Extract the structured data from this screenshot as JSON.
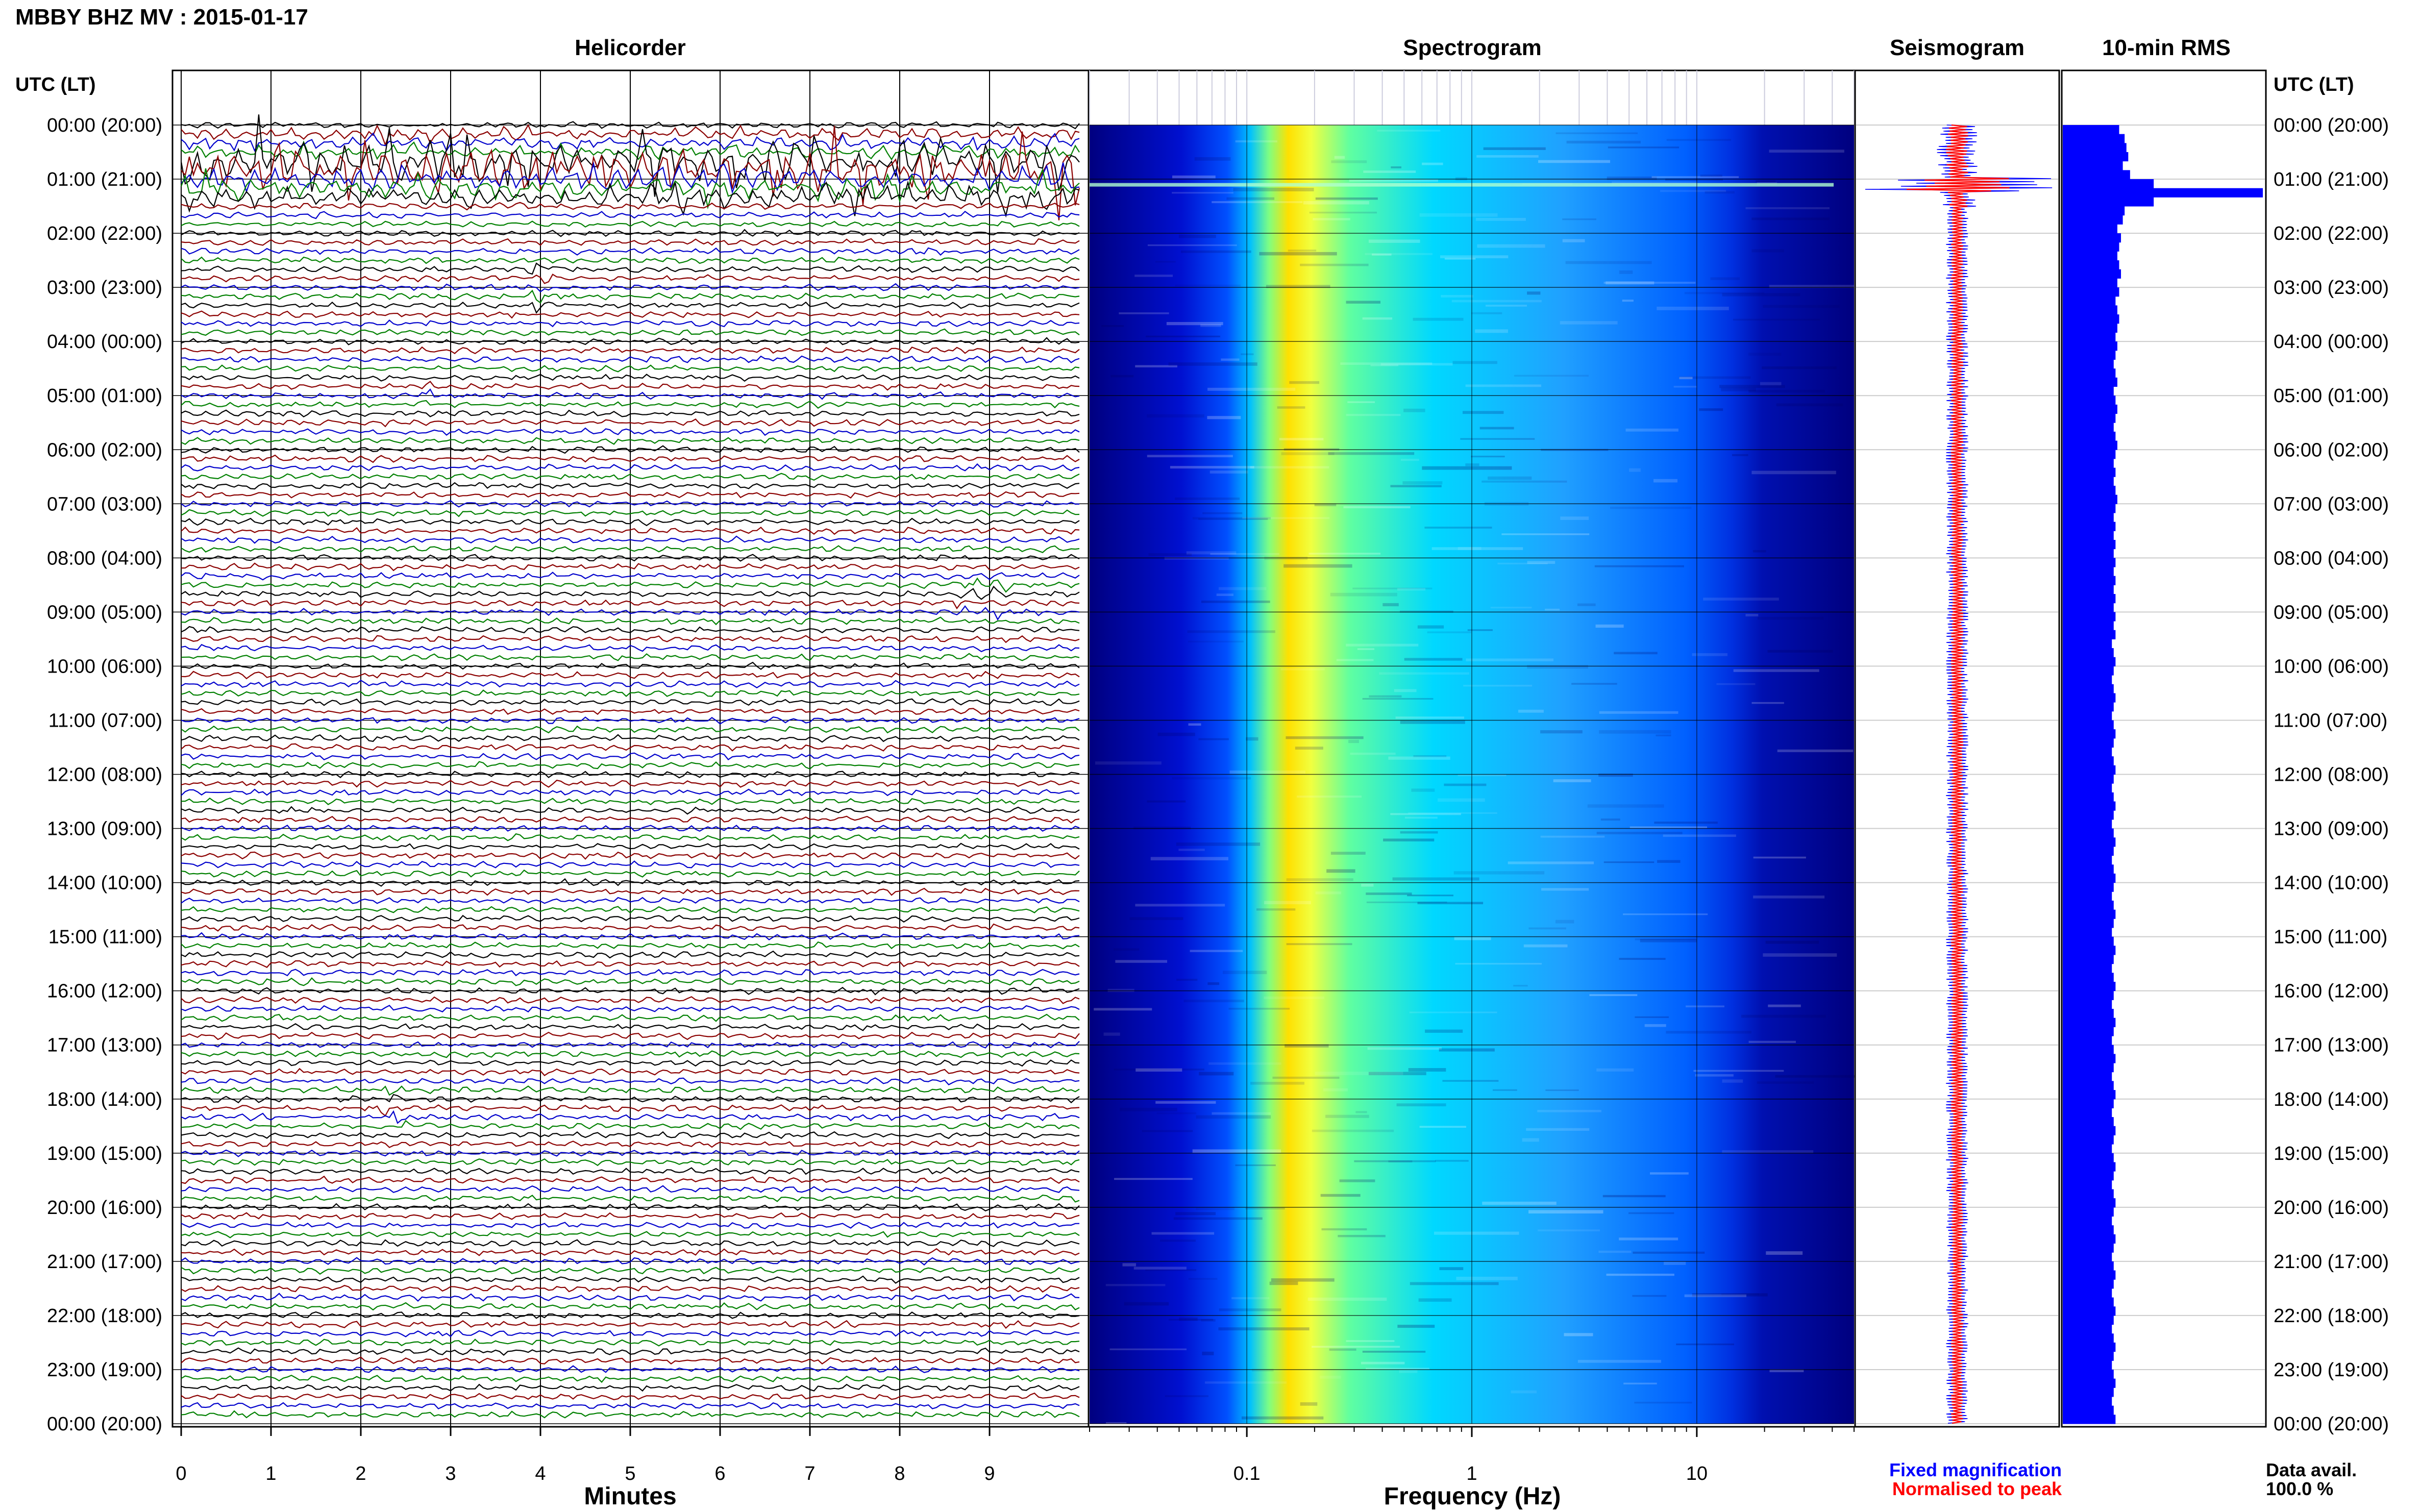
{
  "header": {
    "station_title": "MBBY BHZ MV : 2015-01-17",
    "utc_label_left": "UTC (LT)",
    "utc_label_right": "UTC (LT)"
  },
  "panels": {
    "helicorder_title": "Helicorder",
    "spectrogram_title": "Spectrogram",
    "seismogram_title": "Seismogram",
    "rms_title": "10-min RMS"
  },
  "time_labels": [
    "00:00 (20:00)",
    "01:00 (21:00)",
    "02:00 (22:00)",
    "03:00 (23:00)",
    "04:00 (00:00)",
    "05:00 (01:00)",
    "06:00 (02:00)",
    "07:00 (03:00)",
    "08:00 (04:00)",
    "09:00 (05:00)",
    "10:00 (06:00)",
    "11:00 (07:00)",
    "12:00 (08:00)",
    "13:00 (09:00)",
    "14:00 (10:00)",
    "15:00 (11:00)",
    "16:00 (12:00)",
    "17:00 (13:00)",
    "18:00 (14:00)",
    "19:00 (15:00)",
    "20:00 (16:00)",
    "21:00 (17:00)",
    "22:00 (18:00)",
    "23:00 (19:00)",
    "00:00 (20:00)"
  ],
  "legend": {
    "fixed_label": "Fixed magnification",
    "normalised_label": "Normalised to peak",
    "fixed_color": "#0000ff",
    "normalised_color": "#ff0000",
    "avail_label": "Data avail.",
    "avail_value": "100.0 %"
  },
  "chart_data": [
    {
      "type": "line",
      "panel": "helicorder",
      "xlabel": "Minutes",
      "x_ticks": [
        "0",
        "1",
        "2",
        "3",
        "4",
        "5",
        "6",
        "7",
        "8",
        "9"
      ],
      "xlim": [
        0,
        10
      ],
      "hours": 24,
      "traces_per_hour": 6,
      "trace_colors": [
        "#000000",
        "#8b0000",
        "#0000cc",
        "#008000"
      ],
      "events": [
        {
          "hour": 1.0,
          "minute_start": 0.0,
          "minute_end": 10.0,
          "strength": 3.0
        },
        {
          "hour": 0.5,
          "minute_start": 0.0,
          "minute_end": 10.0,
          "strength": 1.6
        },
        {
          "hour": 3.0,
          "minute_start": 3.9,
          "minute_end": 4.2,
          "strength": 1.8
        },
        {
          "hour": 5.0,
          "minute_start": 2.6,
          "minute_end": 2.8,
          "strength": 1.6
        },
        {
          "hour": 8.67,
          "minute_start": 8.6,
          "minute_end": 9.3,
          "strength": 1.4
        },
        {
          "hour": 18.17,
          "minute_start": 2.2,
          "minute_end": 2.5,
          "strength": 2.0
        }
      ]
    },
    {
      "type": "heatmap",
      "panel": "spectrogram",
      "xlabel": "Frequency (Hz)",
      "x_scale": "log",
      "x_ticks": [
        "0.1",
        "1",
        "10"
      ],
      "x_tick_values": [
        0.1,
        1,
        10
      ],
      "xlim": [
        0.02,
        50
      ],
      "peak_frequency_hz": 0.25,
      "colormap": [
        "#00007f",
        "#0000ff",
        "#0080ff",
        "#00ffff",
        "#80ff80",
        "#ffff00",
        "#ff8000"
      ]
    },
    {
      "type": "line",
      "panel": "seismogram",
      "series": [
        {
          "name": "Fixed magnification",
          "color": "#0000ff"
        },
        {
          "name": "Normalised to peak",
          "color": "#ff0000"
        }
      ]
    },
    {
      "type": "bar",
      "panel": "rms",
      "orientation": "horizontal",
      "title": "10-min RMS",
      "interval_minutes": 10,
      "values": [
        0.62,
        0.68,
        0.7,
        0.72,
        0.66,
        0.74,
        1.0,
        2.2,
        1.0,
        0.68,
        0.66,
        0.6,
        0.64,
        0.62,
        0.6,
        0.62,
        0.64,
        0.6,
        0.62,
        0.58,
        0.6,
        0.62,
        0.6,
        0.58,
        0.6,
        0.58,
        0.56,
        0.58,
        0.6,
        0.56,
        0.58,
        0.6,
        0.58,
        0.56,
        0.58,
        0.6,
        0.58,
        0.56,
        0.58,
        0.56,
        0.58,
        0.6,
        0.58,
        0.56,
        0.58,
        0.56,
        0.58,
        0.56,
        0.58,
        0.56,
        0.58,
        0.56,
        0.58,
        0.56,
        0.58,
        0.56,
        0.58,
        0.54,
        0.56,
        0.58,
        0.56,
        0.54,
        0.56,
        0.58,
        0.56,
        0.54,
        0.56,
        0.58,
        0.56,
        0.54,
        0.56,
        0.58,
        0.56,
        0.54,
        0.56,
        0.58,
        0.56,
        0.54,
        0.56,
        0.58,
        0.56,
        0.54,
        0.56,
        0.58,
        0.56,
        0.54,
        0.56,
        0.58,
        0.56,
        0.54,
        0.56,
        0.58,
        0.56,
        0.54,
        0.56,
        0.58,
        0.56,
        0.54,
        0.56,
        0.58,
        0.56,
        0.54,
        0.56,
        0.58,
        0.56,
        0.54,
        0.56,
        0.58,
        0.56,
        0.54,
        0.56,
        0.58,
        0.56,
        0.54,
        0.56,
        0.58,
        0.56,
        0.54,
        0.56,
        0.58,
        0.56,
        0.54,
        0.56,
        0.58,
        0.56,
        0.54,
        0.56,
        0.58,
        0.56,
        0.54,
        0.56,
        0.58,
        0.56,
        0.54,
        0.56,
        0.58,
        0.56,
        0.54,
        0.56,
        0.58,
        0.56,
        0.54,
        0.56,
        0.58
      ],
      "color": "#0000ff"
    }
  ]
}
